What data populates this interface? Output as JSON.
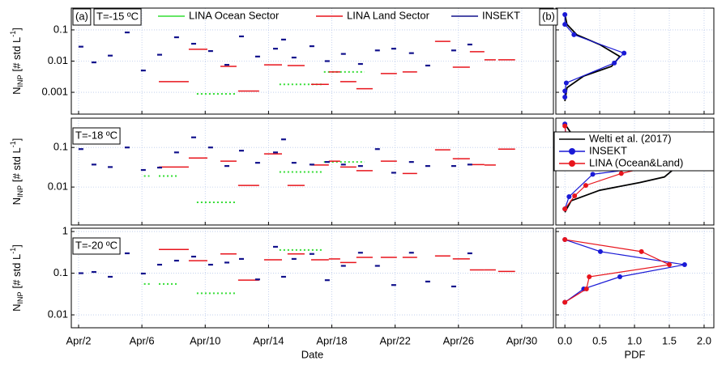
{
  "chart_data": [
    {
      "type": "segment",
      "label": "(a)",
      "annotation": "T=-15 ºC",
      "legend": "top",
      "log_y": true,
      "grid": true,
      "ylabel": {
        "text": "N",
        "sub": "INP",
        "unit": "[# std L",
        "sup": "-1",
        "end": "]"
      },
      "xlim": [
        1.54,
        32.0
      ],
      "ylim": [
        0.0002,
        0.5
      ],
      "yticks": [
        0.1,
        0.01,
        0.001
      ],
      "series": [
        {
          "name": "LINA Ocean Sector",
          "color": "#33dd33",
          "style": "dotted",
          "x_start": [
            9.47,
            14.69,
            17.5
          ],
          "x_end": [
            11.88,
            17.5,
            20.07
          ],
          "values": [
            0.00089,
            0.0018,
            0.0045
          ]
        },
        {
          "name": "LINA Land Sector",
          "color": "#e8141c",
          "style": "solid",
          "x_start": [
            7.07,
            8.96,
            10.96,
            12.08,
            13.72,
            15.2,
            16.69,
            17.81,
            18.53,
            19.55,
            21.09,
            22.47,
            24.52,
            25.64,
            26.72,
            27.64,
            28.51
          ],
          "x_end": [
            8.96,
            10.14,
            11.98,
            13.41,
            14.85,
            16.28,
            17.81,
            18.53,
            19.55,
            20.58,
            22.11,
            23.39,
            25.49,
            26.72,
            27.64,
            28.36,
            29.58
          ],
          "values": [
            0.0022,
            0.024,
            0.0068,
            0.0011,
            0.0076,
            0.0072,
            0.0018,
            0.0045,
            0.0022,
            0.0013,
            0.004,
            0.0045,
            0.043,
            0.0064,
            0.02,
            0.011,
            0.011
          ]
        },
        {
          "name": "INSEKT",
          "color": "#12128c",
          "style": "dash",
          "x": [
            2.15,
            2.97,
            4.0,
            5.07,
            6.09,
            7.12,
            8.19,
            9.27,
            10.34,
            11.37,
            12.29,
            13.31,
            14.44,
            14.95,
            15.61,
            16.74,
            17.71,
            18.73,
            19.81,
            20.88,
            21.91,
            23.03,
            24.06,
            25.7,
            26.72
          ],
          "values": [
            0.029,
            0.0091,
            0.015,
            0.083,
            0.005,
            0.016,
            0.058,
            0.036,
            0.021,
            0.0076,
            0.062,
            0.014,
            0.025,
            0.049,
            0.013,
            0.03,
            0.01,
            0.017,
            0.0081,
            0.022,
            0.025,
            0.018,
            0.0072,
            0.022,
            0.034
          ]
        }
      ]
    },
    {
      "type": "segment",
      "annotation": "T=-18 ºC",
      "log_y": true,
      "grid": true,
      "ylabel": {
        "text": "N",
        "sub": "INP",
        "unit": "[# std L",
        "sup": "-1",
        "end": "]"
      },
      "xlim": [
        1.54,
        32.0
      ],
      "ylim": [
        0.0011,
        0.55
      ],
      "yticks": [
        0.1,
        0.01
      ],
      "series": [
        {
          "color": "#33dd33",
          "style": "dotted",
          "x_start": [
            6.13,
            7.07,
            9.47,
            14.69,
            17.5
          ],
          "x_end": [
            6.48,
            8.3,
            11.88,
            17.5,
            20.07
          ],
          "values": [
            0.019,
            0.019,
            0.0041,
            0.024,
            0.043
          ]
        },
        {
          "color": "#e8141c",
          "style": "solid",
          "x_start": [
            7.07,
            8.96,
            10.96,
            12.08,
            13.72,
            15.2,
            16.69,
            17.81,
            18.53,
            19.55,
            21.09,
            22.47,
            24.52,
            25.64,
            26.72,
            27.64,
            28.51
          ],
          "x_end": [
            8.96,
            10.14,
            11.98,
            13.41,
            14.85,
            16.28,
            17.81,
            18.53,
            19.55,
            20.58,
            22.11,
            23.39,
            25.49,
            26.72,
            27.64,
            28.36,
            29.58
          ],
          "values": [
            0.032,
            0.054,
            0.045,
            0.011,
            0.069,
            0.011,
            0.036,
            0.045,
            0.032,
            0.026,
            0.045,
            0.022,
            0.087,
            0.052,
            0.037,
            0.036,
            0.091
          ]
        },
        {
          "color": "#12128c",
          "style": "dash",
          "x": [
            2.15,
            2.97,
            4.0,
            5.07,
            6.09,
            7.12,
            8.19,
            9.27,
            10.34,
            11.37,
            12.29,
            13.31,
            14.44,
            14.95,
            15.61,
            16.74,
            17.71,
            18.73,
            19.81,
            20.88,
            21.91,
            23.03,
            24.06,
            25.7,
            26.72
          ],
          "values": [
            0.091,
            0.037,
            0.032,
            0.1,
            0.027,
            0.031,
            0.075,
            0.18,
            0.1,
            0.034,
            0.083,
            0.041,
            0.075,
            0.16,
            0.041,
            0.037,
            0.043,
            0.037,
            0.034,
            0.091,
            0.023,
            0.043,
            0.034,
            0.034,
            0.037
          ]
        }
      ]
    },
    {
      "type": "segment",
      "annotation": "T=-20 ºC",
      "log_y": true,
      "grid": true,
      "xlabel": "Date",
      "ylabel": {
        "text": "N",
        "sub": "INP",
        "unit": "[# std L",
        "sup": "-1",
        "end": "]"
      },
      "xlim": [
        1.54,
        32.0
      ],
      "ylim": [
        0.0049,
        1.2
      ],
      "yticks": [
        1,
        0.1,
        0.01
      ],
      "xticks": [
        {
          "value": 2,
          "label": "Apr/2"
        },
        {
          "value": 6,
          "label": "Apr/6"
        },
        {
          "value": 10,
          "label": "Apr/10"
        },
        {
          "value": 14,
          "label": "Apr/14"
        },
        {
          "value": 18,
          "label": "Apr/18"
        },
        {
          "value": 22,
          "label": "Apr/22"
        },
        {
          "value": 26,
          "label": "Apr/26"
        },
        {
          "value": 30,
          "label": "Apr/30"
        }
      ],
      "series": [
        {
          "color": "#33dd33",
          "style": "dotted",
          "x_start": [
            6.13,
            7.07,
            9.47,
            14.69
          ],
          "x_end": [
            6.53,
            8.3,
            11.88,
            17.5
          ],
          "values": [
            0.055,
            0.055,
            0.033,
            0.36
          ]
        },
        {
          "color": "#e8141c",
          "style": "solid",
          "x_start": [
            7.07,
            8.96,
            10.96,
            12.08,
            13.72,
            15.2,
            16.69,
            17.81,
            18.53,
            19.55,
            21.09,
            22.47,
            24.52,
            25.64,
            26.72,
            27.64,
            28.51
          ],
          "x_end": [
            8.96,
            10.14,
            11.98,
            13.41,
            14.85,
            16.28,
            17.81,
            18.53,
            19.55,
            20.58,
            22.11,
            23.39,
            25.49,
            26.72,
            27.64,
            28.36,
            29.58
          ],
          "values": [
            0.37,
            0.2,
            0.29,
            0.068,
            0.21,
            0.29,
            0.21,
            0.22,
            0.18,
            0.24,
            0.24,
            0.24,
            0.26,
            0.22,
            0.12,
            0.12,
            0.11
          ]
        },
        {
          "color": "#12128c",
          "style": "dash",
          "x": [
            2.15,
            2.97,
            4.0,
            5.07,
            6.09,
            7.12,
            8.19,
            9.27,
            10.34,
            11.37,
            12.29,
            13.31,
            14.44,
            14.95,
            15.61,
            16.74,
            17.71,
            18.73,
            19.81,
            20.88,
            21.91,
            23.03,
            24.06,
            25.7,
            26.72
          ],
          "values": [
            0.1,
            0.107,
            0.082,
            0.3,
            0.098,
            0.16,
            0.2,
            0.25,
            0.16,
            0.18,
            0.22,
            0.071,
            0.43,
            0.082,
            0.22,
            0.29,
            0.068,
            0.15,
            0.31,
            0.15,
            0.052,
            0.31,
            0.063,
            0.048,
            0.3
          ]
        }
      ]
    },
    {
      "type": "line",
      "label": "(b)",
      "log_y": true,
      "grid": true,
      "xlim": [
        -0.13,
        2.14
      ],
      "ylim": [
        0.0002,
        0.5
      ],
      "series": [
        {
          "color": "#000000",
          "marker": false,
          "x": [
            0,
            0.03,
            0.17,
            0.5,
            0.79,
            0.67,
            0.27,
            0.03,
            0
          ],
          "values": [
            0.31,
            0.15,
            0.07,
            0.034,
            0.014,
            0.0068,
            0.0033,
            0.0014,
            0.00052
          ]
        },
        {
          "color": "#1a1ad6",
          "marker": true,
          "x": [
            0,
            0,
            0.13,
            0.85,
            0.71,
            0.02,
            0,
            0
          ],
          "values": [
            0.31,
            0.15,
            0.07,
            0.018,
            0.0087,
            0.002,
            0.0011,
            0.0007
          ]
        }
      ]
    },
    {
      "type": "line",
      "legend": "upper right",
      "log_y": true,
      "grid": true,
      "xlim": [
        -0.13,
        2.14
      ],
      "ylim": [
        0.0011,
        0.55
      ],
      "series": [
        {
          "name": "Welti et al. (2017)",
          "color": "#000000",
          "marker": false,
          "x": [
            0,
            0.15,
            0.5,
            1.08,
            1.43,
            1.55,
            1.43,
            1.08,
            0.5,
            0.09,
            0
          ],
          "values": [
            0.39,
            0.16,
            0.087,
            0.054,
            0.037,
            0.027,
            0.018,
            0.013,
            0.0083,
            0.0045,
            0.0023
          ]
        },
        {
          "name": "INSEKT",
          "color": "#1a1ad6",
          "marker": true,
          "x": [
            0,
            0.01,
            0.8,
            1.85,
            0.4,
            0.06,
            0
          ],
          "values": [
            0.39,
            0.22,
            0.091,
            0.045,
            0.021,
            0.0057,
            0.0028
          ]
        },
        {
          "name": "LINA (Ocean&Land)",
          "color": "#e8141c",
          "marker": true,
          "x": [
            0,
            0.02,
            0.48,
            1.55,
            0.81,
            0.3,
            0.14,
            0
          ],
          "values": [
            0.35,
            0.18,
            0.087,
            0.045,
            0.022,
            0.011,
            0.006,
            0.0028
          ]
        }
      ]
    },
    {
      "type": "line",
      "log_y": true,
      "grid": true,
      "xlabel": "PDF",
      "xlim": [
        -0.13,
        2.14
      ],
      "ylim": [
        0.0049,
        1.2
      ],
      "xticks": [
        {
          "value": 0,
          "label": "0.0"
        },
        0.5,
        {
          "value": 1,
          "label": "1.0"
        },
        1.5,
        {
          "value": 2,
          "label": "2.0"
        }
      ],
      "series": [
        {
          "color": "#1a1ad6",
          "marker": true,
          "x": [
            0,
            0.51,
            1.72,
            0.79,
            0.27,
            0
          ],
          "values": [
            0.64,
            0.33,
            0.16,
            0.082,
            0.042,
            0.02
          ]
        },
        {
          "color": "#e8141c",
          "marker": true,
          "x": [
            0,
            1.1,
            1.5,
            0.35,
            0.31,
            0
          ],
          "values": [
            0.64,
            0.33,
            0.16,
            0.082,
            0.042,
            0.02
          ]
        }
      ]
    }
  ]
}
